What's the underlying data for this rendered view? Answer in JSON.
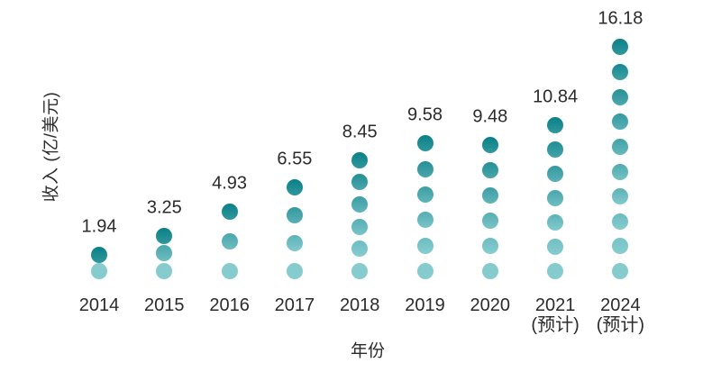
{
  "chart_data": {
    "type": "bar",
    "variant": "dot-stack-pictogram",
    "title": "",
    "xlabel": "年份",
    "ylabel": "收入 (亿/美元)",
    "categories": [
      "2014",
      "2015",
      "2016",
      "2017",
      "2018",
      "2019",
      "2020",
      "2021",
      "2024"
    ],
    "category_sublabels": [
      "",
      "",
      "",
      "",
      "",
      "",
      "",
      "(预计)",
      "(预计)"
    ],
    "values": [
      1.94,
      3.25,
      4.93,
      6.55,
      8.45,
      9.58,
      9.48,
      10.84,
      16.18
    ],
    "value_labels": [
      "1.94",
      "3.25",
      "4.93",
      "6.55",
      "8.45",
      "9.58",
      "9.48",
      "10.84",
      "16.18"
    ],
    "dot_counts": [
      2,
      3,
      3,
      4,
      6,
      6,
      6,
      7,
      10
    ],
    "colors": {
      "dot_top": "#0B8087",
      "dot_bottom": "#86CCCF",
      "text": "#2B2B2B",
      "background": "#FFFFFF"
    },
    "layout_hints": {
      "grid": false,
      "legend": false,
      "value_labels_position": "above-column",
      "y_axis_ticks": "none",
      "ylim": [
        0,
        17
      ]
    }
  }
}
